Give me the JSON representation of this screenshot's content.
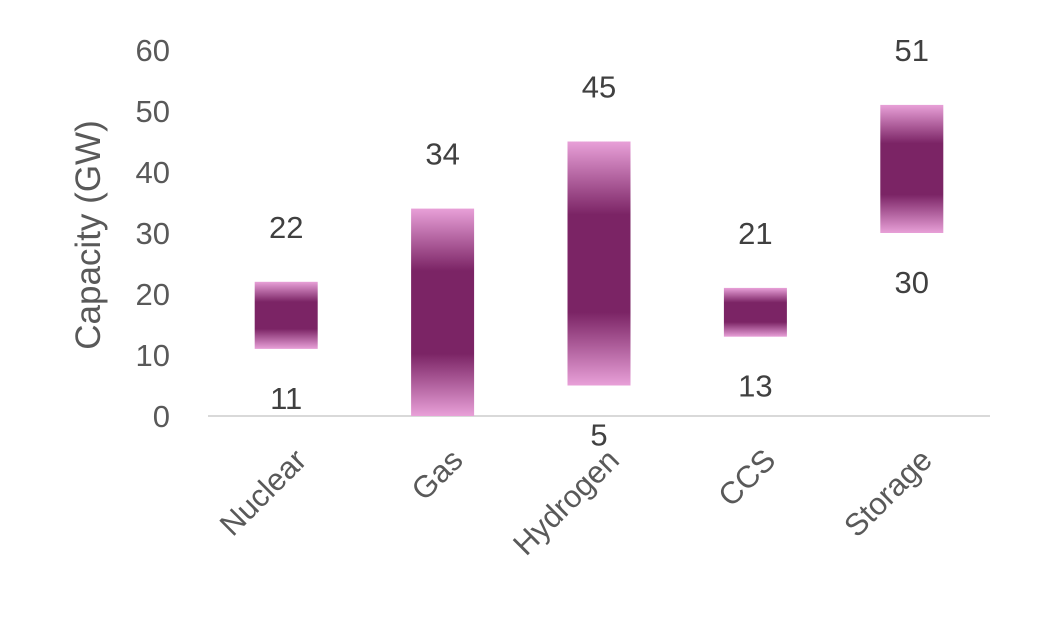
{
  "chart_data": {
    "type": "bar",
    "subtype": "floating-range",
    "categories": [
      "Nuclear",
      "Gas",
      "Hydrogen",
      "CCS",
      "Storage"
    ],
    "series": [
      {
        "low": [
          11,
          0,
          5,
          13,
          30
        ],
        "high": [
          22,
          34,
          45,
          21,
          51
        ]
      }
    ],
    "data_labels": {
      "low": [
        "11",
        "",
        "5",
        "13",
        "30"
      ],
      "high": [
        "22",
        "34",
        "45",
        "21",
        "51"
      ]
    },
    "ylabel": "Capacity (GW)",
    "xlabel": "",
    "ylim": [
      0,
      60
    ],
    "yticks": [
      0,
      10,
      20,
      30,
      40,
      50,
      60
    ],
    "grid": false,
    "legend": "none",
    "colors": {
      "bar_center": "#7b2465",
      "bar_edge": "#e8a0d8",
      "axis": "#d9d9d9"
    }
  }
}
